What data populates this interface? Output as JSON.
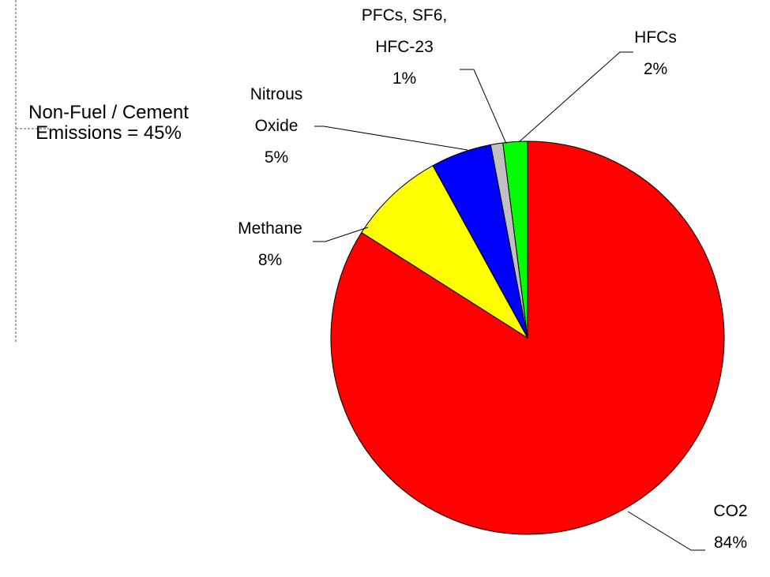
{
  "chart_data": {
    "type": "pie",
    "categories": [
      "CO2",
      "Methane",
      "Nitrous Oxide",
      "PFCs, SF6, HFC-23",
      "HFCs"
    ],
    "values": [
      84,
      8,
      5,
      1,
      2
    ],
    "value_labels": [
      "84%",
      "8%",
      "5%",
      "1%",
      "2%"
    ],
    "colors": [
      "#ff0000",
      "#ffff00",
      "#0000ff",
      "#c0c0c0",
      "#00ff00"
    ],
    "annotation": "Non-Fuel / Cement Emissions = 45%"
  }
}
